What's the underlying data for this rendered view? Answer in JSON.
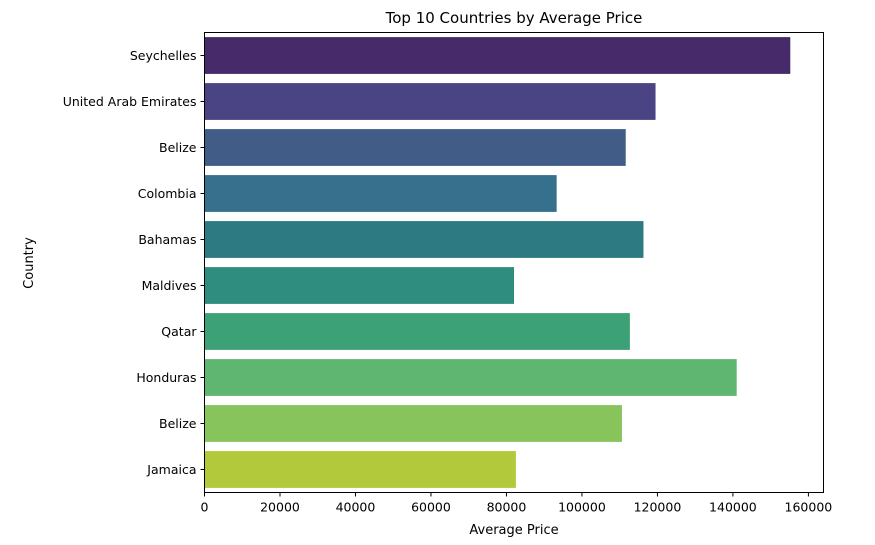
{
  "chart_data": {
    "type": "bar",
    "orientation": "horizontal",
    "title": "Top 10 Countries by Average Price",
    "xlabel": "Average Price",
    "ylabel": "Country",
    "xlim": [
      0,
      164000
    ],
    "xticks": [
      0,
      20000,
      40000,
      60000,
      80000,
      100000,
      120000,
      140000,
      160000
    ],
    "grid": false,
    "categories": [
      " Seychelles",
      " United Arab Emirates",
      " Belize",
      " Colombia",
      " Bahamas",
      "Maldives",
      " Qatar",
      " Honduras",
      "Belize",
      " Jamaica"
    ],
    "values": [
      155200,
      119500,
      111600,
      93300,
      116300,
      82000,
      112700,
      141000,
      110600,
      82500
    ],
    "colors": [
      "#472a6a",
      "#4a4384",
      "#415d87",
      "#37708c",
      "#2e7a82",
      "#2f8d7f",
      "#3ca176",
      "#5fb670",
      "#87c45b",
      "#b1c93a"
    ]
  }
}
